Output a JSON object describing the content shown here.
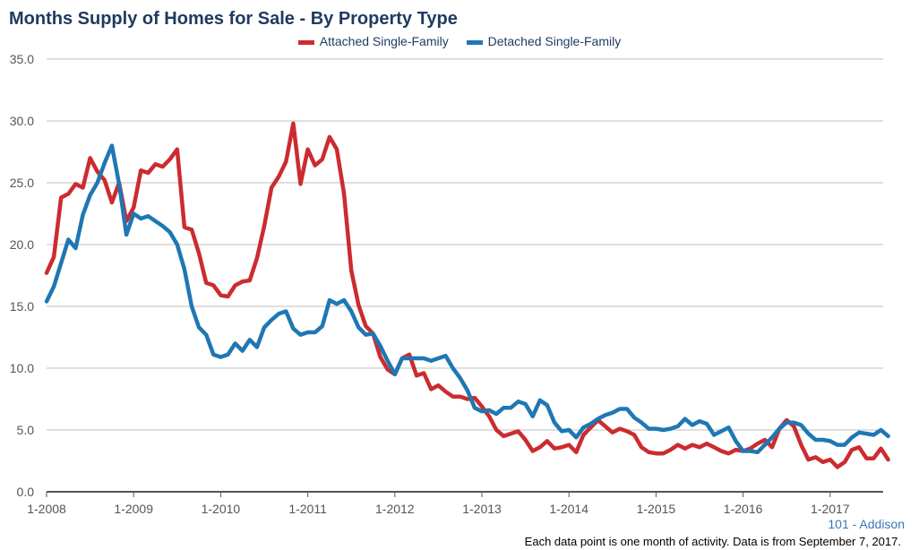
{
  "chart_data": {
    "type": "line",
    "title": "Months Supply of Homes for Sale - By Property Type",
    "xlabel": "",
    "ylabel": "",
    "ylim": [
      0,
      35
    ],
    "yticks": [
      "0.0",
      "5.0",
      "10.0",
      "15.0",
      "20.0",
      "25.0",
      "30.0",
      "35.0"
    ],
    "xticks": [
      "1-2008",
      "1-2009",
      "1-2010",
      "1-2011",
      "1-2012",
      "1-2013",
      "1-2014",
      "1-2015",
      "1-2016",
      "1-2017"
    ],
    "x_start": "1-2008",
    "x_end": "8-2017",
    "grid": true,
    "legend_position": "top",
    "series": [
      {
        "name": "Attached Single-Family",
        "color": "#cc2b2f",
        "values": [
          17.7,
          19.0,
          23.8,
          24.1,
          24.9,
          24.6,
          27.0,
          25.9,
          25.2,
          23.4,
          25.0,
          21.9,
          23.0,
          26.0,
          25.8,
          26.5,
          26.3,
          26.9,
          27.7,
          21.4,
          21.2,
          19.3,
          16.9,
          16.7,
          15.9,
          15.8,
          16.7,
          17.0,
          17.1,
          18.9,
          21.5,
          24.6,
          25.5,
          26.7,
          29.8,
          24.9,
          27.7,
          26.4,
          26.9,
          28.7,
          27.7,
          24.1,
          17.9,
          15.1,
          13.4,
          12.8,
          10.9,
          9.9,
          9.5,
          10.8,
          11.1,
          9.4,
          9.6,
          8.3,
          8.6,
          8.1,
          7.7,
          7.7,
          7.5,
          7.6,
          6.9,
          6.1,
          5.0,
          4.5,
          4.7,
          4.9,
          4.2,
          3.3,
          3.6,
          4.1,
          3.5,
          3.6,
          3.8,
          3.2,
          4.6,
          5.2,
          5.8,
          5.3,
          4.8,
          5.1,
          4.9,
          4.6,
          3.6,
          3.2,
          3.1,
          3.1,
          3.4,
          3.8,
          3.5,
          3.8,
          3.6,
          3.9,
          3.6,
          3.3,
          3.1,
          3.4,
          3.3,
          3.5,
          3.9,
          4.2,
          3.6,
          5.1,
          5.8,
          5.3,
          3.8,
          2.6,
          2.8,
          2.4,
          2.6,
          2.0,
          2.4,
          3.4,
          3.6,
          2.7,
          2.7,
          3.5,
          2.6
        ]
      },
      {
        "name": "Detached Single-Family",
        "color": "#1f77b4",
        "values": [
          15.4,
          16.6,
          18.5,
          20.4,
          19.7,
          22.4,
          24.0,
          25.0,
          26.6,
          28.0,
          24.9,
          20.8,
          22.5,
          22.1,
          22.3,
          21.9,
          21.5,
          21.0,
          20.0,
          18.0,
          15.0,
          13.3,
          12.7,
          11.1,
          10.9,
          11.1,
          12.0,
          11.4,
          12.3,
          11.7,
          13.3,
          13.9,
          14.4,
          14.6,
          13.2,
          12.7,
          12.9,
          12.9,
          13.4,
          15.5,
          15.2,
          15.5,
          14.6,
          13.3,
          12.7,
          12.8,
          11.8,
          10.6,
          9.5,
          10.8,
          10.8,
          10.8,
          10.8,
          10.6,
          10.8,
          11.0,
          10.0,
          9.2,
          8.2,
          6.8,
          6.5,
          6.6,
          6.3,
          6.8,
          6.8,
          7.3,
          7.1,
          6.1,
          7.4,
          7.0,
          5.6,
          4.9,
          5.0,
          4.4,
          5.2,
          5.5,
          5.9,
          6.2,
          6.4,
          6.7,
          6.7,
          6.0,
          5.6,
          5.1,
          5.1,
          5.0,
          5.1,
          5.3,
          5.9,
          5.4,
          5.7,
          5.5,
          4.6,
          4.9,
          5.2,
          4.1,
          3.3,
          3.3,
          3.2,
          3.8,
          4.4,
          5.1,
          5.6,
          5.6,
          5.4,
          4.7,
          4.2,
          4.2,
          4.1,
          3.8,
          3.8,
          4.4,
          4.8,
          4.7,
          4.6,
          5.0,
          4.5
        ]
      }
    ]
  },
  "area_label": "101 - Addison",
  "footnote": "Each data point is one month of activity. Data is from September 7, 2017."
}
